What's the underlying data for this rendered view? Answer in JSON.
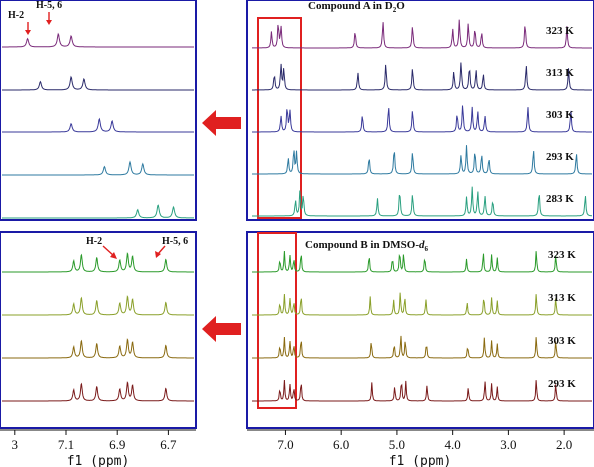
{
  "figure": {
    "compound_a_title": "Compound A in D",
    "compound_a_sub": "2",
    "compound_a_tail": "O",
    "compound_b_title": "Compound B in DMSO-",
    "compound_b_italic": "d",
    "compound_b_sub": "6",
    "annotation_h2": "H-2",
    "annotation_h56": "H-5, 6",
    "temps_a": [
      "323 K",
      "313 K",
      "303 K",
      "293 K",
      "283 K"
    ],
    "temps_b": [
      "323 K",
      "313 K",
      "303 K",
      "293 K"
    ],
    "axis_title": "f1 (ppm)",
    "right_ticks": [
      "7.0",
      "6.0",
      "5.0",
      "4.0",
      "3.0",
      "2.0"
    ],
    "left_ticks": [
      "3",
      "7.1",
      "6.9",
      "6.7"
    ],
    "colors": {
      "frame": "#1a1aa6",
      "highlight": "#e02020",
      "arrow": "#e02020",
      "a_traces": [
        "#7a2a7a",
        "#2a2a6a",
        "#3a3a9a",
        "#2e7aa0",
        "#2aa080"
      ],
      "b_traces": [
        "#2a9a2a",
        "#8aa02a",
        "#8a6a10",
        "#7a1a1a"
      ]
    }
  },
  "chart_data": [
    {
      "type": "line",
      "panel": "A-full",
      "xlabel": "f1 (ppm)",
      "xlim": [
        7.6,
        1.5
      ],
      "series": [
        {
          "name": "323 K",
          "peaks": [
            7.25,
            7.13,
            7.08,
            5.75,
            5.25,
            4.72,
            4.0,
            3.88,
            3.72,
            3.6,
            3.48,
            2.7,
            1.95
          ]
        },
        {
          "name": "313 K",
          "peaks": [
            7.2,
            7.08,
            7.03,
            5.7,
            5.2,
            4.72,
            3.98,
            3.85,
            3.7,
            3.58,
            3.45,
            2.68,
            1.92
          ]
        },
        {
          "name": "303 K",
          "peaks": [
            7.08,
            6.97,
            6.92,
            5.62,
            5.15,
            4.72,
            3.92,
            3.82,
            3.65,
            3.55,
            3.42,
            2.65,
            1.88
          ]
        },
        {
          "name": "293 K",
          "peaks": [
            6.95,
            6.85,
            6.8,
            5.5,
            5.05,
            4.72,
            3.85,
            3.75,
            3.6,
            3.48,
            3.35,
            2.55,
            1.78
          ]
        },
        {
          "name": "283 K",
          "peaks": [
            6.82,
            6.74,
            6.68,
            5.35,
            4.95,
            4.72,
            3.75,
            3.65,
            3.55,
            3.42,
            3.28,
            2.45,
            1.62
          ]
        }
      ]
    },
    {
      "type": "line",
      "panel": "B-full",
      "xlabel": "f1 (ppm)",
      "xlim": [
        7.6,
        1.5
      ],
      "series": [
        {
          "name": "323 K",
          "peaks": [
            7.1,
            7.02,
            6.92,
            6.85,
            6.72,
            5.5,
            5.08,
            4.95,
            4.88,
            4.5,
            3.75,
            3.45,
            3.3,
            3.2,
            2.5,
            2.15
          ]
        },
        {
          "name": "313 K",
          "peaks": [
            7.1,
            7.02,
            6.92,
            6.85,
            6.72,
            5.48,
            5.06,
            4.94,
            4.86,
            4.48,
            3.74,
            3.44,
            3.3,
            3.2,
            2.5,
            2.15
          ]
        },
        {
          "name": "303 K",
          "peaks": [
            7.1,
            7.02,
            6.92,
            6.85,
            6.72,
            5.46,
            5.05,
            4.93,
            4.85,
            4.47,
            3.73,
            3.43,
            3.3,
            3.2,
            2.5,
            2.15
          ]
        },
        {
          "name": "293 K",
          "peaks": [
            7.1,
            7.02,
            6.92,
            6.85,
            6.72,
            5.45,
            5.04,
            4.92,
            4.84,
            4.46,
            3.72,
            3.42,
            3.3,
            3.2,
            2.5,
            2.15
          ]
        }
      ]
    },
    {
      "type": "line",
      "panel": "A-zoom",
      "series": [
        {
          "name": "323 K",
          "peaks": [
            7.25,
            7.13,
            7.08
          ]
        },
        {
          "name": "313 K",
          "peaks": [
            7.2,
            7.08,
            7.03
          ]
        },
        {
          "name": "303 K",
          "peaks": [
            7.08,
            6.97,
            6.92
          ]
        },
        {
          "name": "293 K",
          "peaks": [
            6.95,
            6.85,
            6.8
          ]
        },
        {
          "name": "283 K",
          "peaks": [
            6.82,
            6.74,
            6.68
          ]
        }
      ]
    },
    {
      "type": "line",
      "panel": "B-zoom",
      "xlabel": "f1 (ppm)",
      "xlim": [
        7.35,
        6.6
      ],
      "series": [
        {
          "name": "323 K",
          "peaks": [
            7.07,
            7.04,
            6.98,
            6.89,
            6.86,
            6.84,
            6.71
          ]
        },
        {
          "name": "313 K",
          "peaks": [
            7.07,
            7.04,
            6.98,
            6.89,
            6.86,
            6.84,
            6.71
          ]
        },
        {
          "name": "303 K",
          "peaks": [
            7.07,
            7.04,
            6.98,
            6.89,
            6.86,
            6.84,
            6.71
          ]
        },
        {
          "name": "293 K",
          "peaks": [
            7.07,
            7.04,
            6.98,
            6.89,
            6.86,
            6.84,
            6.71
          ]
        }
      ]
    }
  ]
}
